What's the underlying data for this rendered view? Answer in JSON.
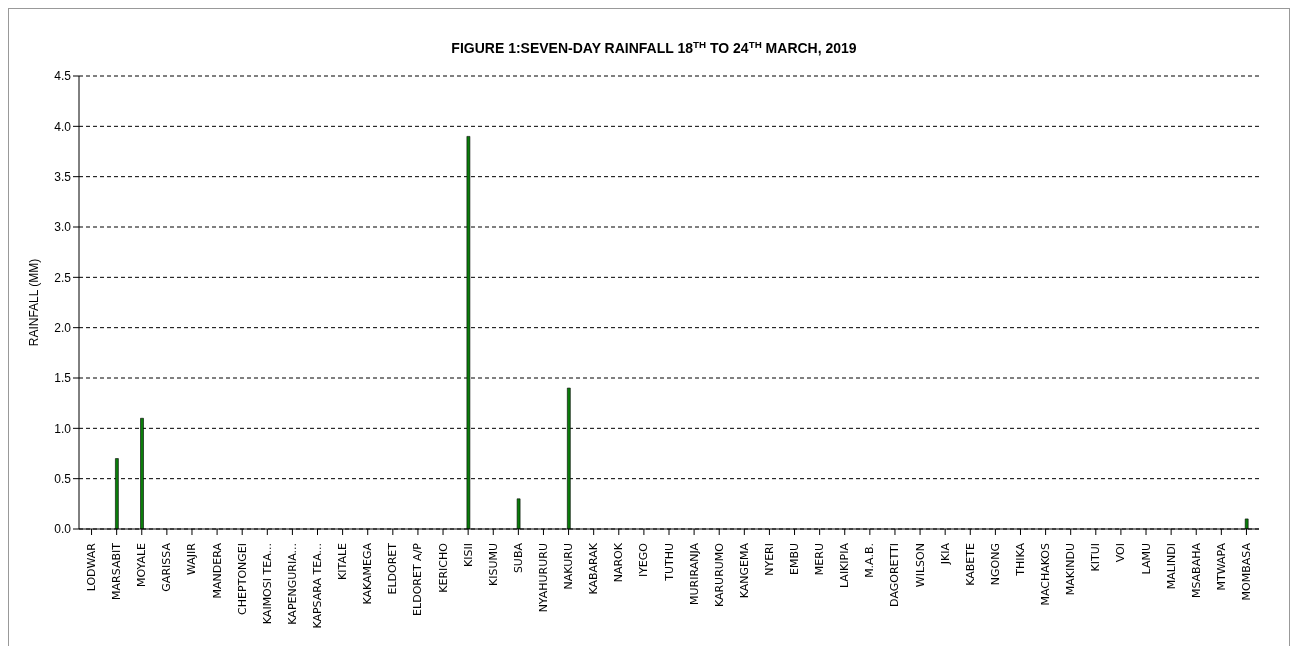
{
  "chart_data": {
    "type": "bar",
    "title": "FIGURE  1:SEVEN-DAY RAINFALL 18$^{TH}$ TO 24$^{TH}$ MARCH, 2019",
    "ylabel": "RAINFALL (MM)",
    "categories": [
      "LODWAR",
      "MARSABIT",
      "MOYALE",
      "GARISSA",
      "WAJIR",
      "MANDERA",
      "CHEPTONGEI",
      "KAIMOSI TEA...",
      "KAPENGURIA...",
      "KAPSARA TEA...",
      "KITALE",
      "KAKAMEGA",
      "ELDORET",
      "ELDORET A/P",
      "KERICHO",
      "KISII",
      "KISUMU",
      "SUBA",
      "NYAHURURU",
      "NAKURU",
      "KABARAK",
      "NAROK",
      "IYEGO",
      "TUTHU",
      "MURIRANJA",
      "KARURUMO",
      "KANGEMA",
      "NYERI",
      "EMBU",
      "MERU",
      "LAIKIPIA",
      "M.A.B.",
      "DAGORETTI",
      "WILSON",
      "JKIA",
      "KABETE",
      "NGONG",
      "THIKA",
      "MACHAKOS",
      "MAKINDU",
      "KITUI",
      "VOI",
      "LAMU",
      "MALINDI",
      "MSABAHA",
      "MTWAPA",
      "MOMBASA"
    ],
    "values": [
      0,
      0.7,
      1.1,
      0,
      0,
      0,
      0,
      0,
      0,
      0,
      0,
      0,
      0,
      0,
      0,
      3.9,
      0,
      0.3,
      0,
      1.4,
      0,
      0,
      0,
      0,
      0,
      0,
      0,
      0,
      0,
      0,
      0,
      0,
      0,
      0,
      0,
      0,
      0,
      0,
      0,
      0,
      0,
      0,
      0,
      0,
      0,
      0,
      0.1
    ],
    "color": "#0a7d0a",
    "ylim": [
      0,
      4.5
    ],
    "yticks": [
      {
        "value": 0,
        "label": "0.0"
      },
      {
        "value": 0.5,
        "label": "0.5"
      },
      {
        "value": 1,
        "label": "1.0"
      },
      {
        "value": 1.5,
        "label": "1.5"
      },
      {
        "value": 2,
        "label": "2.0"
      },
      {
        "value": 2.5,
        "label": "2.5"
      },
      {
        "value": 3,
        "label": "3.0"
      },
      {
        "value": 3.5,
        "label": "3.5"
      },
      {
        "value": 4,
        "label": "4.0"
      },
      {
        "value": 4.5,
        "label": "4.5"
      }
    ],
    "grid": "y",
    "legend": false
  }
}
